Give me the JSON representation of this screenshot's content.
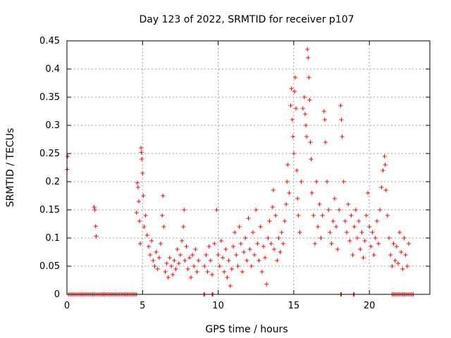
{
  "chart_data": {
    "type": "scatter",
    "title": "Day 123 of 2022, SRMTID for receiver p107",
    "xlabel": "GPS time / hours",
    "ylabel": "SRMTID / TECUs",
    "xlim": [
      0,
      24
    ],
    "ylim": [
      0,
      0.45
    ],
    "x_ticks": [
      0,
      5,
      10,
      15,
      20
    ],
    "x_tick_labels": [
      "0",
      "5",
      "10",
      "15",
      "20"
    ],
    "y_ticks": [
      0,
      0.05,
      0.1,
      0.15,
      0.2,
      0.25,
      0.3,
      0.35,
      0.4,
      0.45
    ],
    "y_tick_labels": [
      "0",
      "0.05",
      "0.1",
      "0.15",
      "0.2",
      "0.25",
      "0.3",
      "0.35",
      "0.4",
      "0.45"
    ],
    "grid": true,
    "marker": "+",
    "color": "#ff0000",
    "series": [
      {
        "name": "p107",
        "points": [
          [
            0.02,
            0.222
          ],
          [
            0.05,
            0.245
          ],
          [
            1.8,
            0.155
          ],
          [
            1.85,
            0.15
          ],
          [
            1.9,
            0.121
          ],
          [
            1.93,
            0.103
          ],
          [
            4.6,
            0.145
          ],
          [
            4.65,
            0.198
          ],
          [
            4.7,
            0.19
          ],
          [
            4.75,
            0.165
          ],
          [
            4.8,
            0.13
          ],
          [
            4.85,
            0.09
          ],
          [
            4.9,
            0.26
          ],
          [
            4.92,
            0.252
          ],
          [
            4.95,
            0.24
          ],
          [
            5.0,
            0.215
          ],
          [
            5.05,
            0.175
          ],
          [
            5.1,
            0.12
          ],
          [
            5.2,
            0.14
          ],
          [
            5.3,
            0.105
          ],
          [
            5.4,
            0.085
          ],
          [
            5.5,
            0.07
          ],
          [
            5.6,
            0.095
          ],
          [
            5.7,
            0.06
          ],
          [
            5.8,
            0.05
          ],
          [
            5.9,
            0.075
          ],
          [
            6.0,
            0.045
          ],
          [
            6.1,
            0.065
          ],
          [
            6.2,
            0.09
          ],
          [
            6.3,
            0.14
          ],
          [
            6.35,
            0.175
          ],
          [
            6.4,
            0.12
          ],
          [
            6.5,
            0.04
          ],
          [
            6.6,
            0.055
          ],
          [
            6.7,
            0.03
          ],
          [
            6.8,
            0.065
          ],
          [
            6.9,
            0.05
          ],
          [
            7.0,
            0.035
          ],
          [
            7.1,
            0.06
          ],
          [
            7.2,
            0.045
          ],
          [
            7.3,
            0.08
          ],
          [
            7.4,
            0.055
          ],
          [
            7.5,
            0.07
          ],
          [
            7.6,
            0.095
          ],
          [
            7.7,
            0.12
          ],
          [
            7.75,
            0.15
          ],
          [
            7.8,
            0.06
          ],
          [
            7.9,
            0.085
          ],
          [
            8.0,
            0.045
          ],
          [
            8.1,
            0.065
          ],
          [
            8.2,
            0.03
          ],
          [
            8.3,
            0.07
          ],
          [
            8.4,
            0.05
          ],
          [
            8.5,
            0.08
          ],
          [
            8.6,
            0.04
          ],
          [
            8.7,
            0.06
          ],
          [
            9.1,
            0.05
          ],
          [
            9.2,
            0.07
          ],
          [
            9.3,
            0.04
          ],
          [
            9.4,
            0.085
          ],
          [
            9.5,
            0.06
          ],
          [
            9.6,
            0.035
          ],
          [
            9.75,
            0.09
          ],
          [
            9.9,
            0.15
          ],
          [
            10.0,
            0.07
          ],
          [
            10.1,
            0.05
          ],
          [
            10.2,
            0.095
          ],
          [
            10.3,
            0.065
          ],
          [
            10.4,
            0.04
          ],
          [
            10.5,
            0.08
          ],
          [
            10.6,
            0.03
          ],
          [
            10.7,
            0.06
          ],
          [
            10.8,
            0.015
          ],
          [
            10.9,
            0.045
          ],
          [
            11.0,
            0.085
          ],
          [
            11.1,
            0.11
          ],
          [
            11.2,
            0.07
          ],
          [
            11.3,
            0.05
          ],
          [
            11.4,
            0.12
          ],
          [
            11.5,
            0.09
          ],
          [
            11.6,
            0.04
          ],
          [
            11.7,
            0.075
          ],
          [
            11.8,
            0.1
          ],
          [
            11.9,
            0.06
          ],
          [
            12.0,
            0.135
          ],
          [
            12.1,
            0.08
          ],
          [
            12.2,
            0.05
          ],
          [
            12.3,
            0.11
          ],
          [
            12.4,
            0.07
          ],
          [
            12.5,
            0.15
          ],
          [
            12.6,
            0.09
          ],
          [
            12.7,
            0.06
          ],
          [
            12.8,
            0.12
          ],
          [
            12.9,
            0.04
          ],
          [
            13.0,
            0.085
          ],
          [
            13.1,
            0.065
          ],
          [
            13.2,
            0.018
          ],
          [
            13.3,
            0.1
          ],
          [
            13.4,
            0.13
          ],
          [
            13.5,
            0.09
          ],
          [
            13.6,
            0.155
          ],
          [
            13.65,
            0.185
          ],
          [
            13.7,
            0.08
          ],
          [
            13.8,
            0.14
          ],
          [
            13.9,
            0.06
          ],
          [
            14.0,
            0.1
          ],
          [
            14.1,
            0.075
          ],
          [
            14.2,
            0.11
          ],
          [
            14.3,
            0.09
          ],
          [
            14.4,
            0.13
          ],
          [
            14.5,
            0.16
          ],
          [
            14.55,
            0.2
          ],
          [
            14.6,
            0.23
          ],
          [
            14.7,
            0.18
          ],
          [
            14.8,
            0.335
          ],
          [
            14.85,
            0.365
          ],
          [
            14.9,
            0.31
          ],
          [
            14.95,
            0.28
          ],
          [
            15.0,
            0.25
          ],
          [
            15.05,
            0.36
          ],
          [
            15.1,
            0.385
          ],
          [
            15.15,
            0.33
          ],
          [
            15.2,
            0.22
          ],
          [
            15.25,
            0.17
          ],
          [
            15.3,
            0.14
          ],
          [
            15.4,
            0.11
          ],
          [
            15.5,
            0.2
          ],
          [
            15.6,
            0.33
          ],
          [
            15.7,
            0.35
          ],
          [
            15.75,
            0.32
          ],
          [
            15.8,
            0.3
          ],
          [
            15.85,
            0.28
          ],
          [
            15.9,
            0.435
          ],
          [
            15.95,
            0.42
          ],
          [
            16.0,
            0.385
          ],
          [
            16.05,
            0.345
          ],
          [
            16.1,
            0.27
          ],
          [
            16.15,
            0.24
          ],
          [
            16.2,
            0.18
          ],
          [
            16.3,
            0.14
          ],
          [
            16.4,
            0.09
          ],
          [
            16.5,
            0.2
          ],
          [
            16.6,
            0.12
          ],
          [
            16.7,
            0.16
          ],
          [
            16.8,
            0.1
          ],
          [
            16.9,
            0.14
          ],
          [
            17.0,
            0.325
          ],
          [
            17.05,
            0.31
          ],
          [
            17.1,
            0.27
          ],
          [
            17.2,
            0.2
          ],
          [
            17.3,
            0.15
          ],
          [
            17.4,
            0.11
          ],
          [
            17.5,
            0.09
          ],
          [
            17.6,
            0.13
          ],
          [
            17.7,
            0.17
          ],
          [
            17.8,
            0.12
          ],
          [
            17.9,
            0.08
          ],
          [
            18.0,
            0.15
          ],
          [
            18.1,
            0.335
          ],
          [
            18.15,
            0.31
          ],
          [
            18.2,
            0.28
          ],
          [
            18.3,
            0.2
          ],
          [
            18.4,
            0.13
          ],
          [
            18.5,
            0.11
          ],
          [
            18.6,
            0.16
          ],
          [
            18.7,
            0.095
          ],
          [
            18.8,
            0.14
          ],
          [
            18.9,
            0.07
          ],
          [
            19.0,
            0.12
          ],
          [
            19.1,
            0.15
          ],
          [
            19.2,
            0.1
          ],
          [
            19.3,
            0.13
          ],
          [
            19.4,
            0.08
          ],
          [
            19.5,
            0.11
          ],
          [
            19.6,
            0.065
          ],
          [
            19.7,
            0.095
          ],
          [
            19.8,
            0.14
          ],
          [
            19.9,
            0.18
          ],
          [
            20.0,
            0.12
          ],
          [
            20.1,
            0.085
          ],
          [
            20.2,
            0.11
          ],
          [
            20.3,
            0.07
          ],
          [
            20.4,
            0.1
          ],
          [
            20.5,
            0.13
          ],
          [
            20.6,
            0.09
          ],
          [
            20.7,
            0.15
          ],
          [
            20.8,
            0.19
          ],
          [
            20.9,
            0.22
          ],
          [
            21.0,
            0.245
          ],
          [
            21.05,
            0.23
          ],
          [
            21.1,
            0.185
          ],
          [
            21.2,
            0.14
          ],
          [
            21.3,
            0.1
          ],
          [
            21.4,
            0.07
          ],
          [
            21.5,
            0.05
          ],
          [
            21.6,
            0.09
          ],
          [
            21.7,
            0.06
          ],
          [
            21.8,
            0.085
          ],
          [
            21.9,
            0.055
          ],
          [
            22.0,
            0.11
          ],
          [
            22.1,
            0.075
          ],
          [
            22.2,
            0.045
          ],
          [
            22.3,
            0.1
          ],
          [
            22.4,
            0.07
          ],
          [
            22.5,
            0.05
          ],
          [
            22.6,
            0.09
          ]
        ],
        "zero_x": [
          0.1,
          0.2,
          0.3,
          0.4,
          0.5,
          0.6,
          0.7,
          0.8,
          0.9,
          1.0,
          1.1,
          1.2,
          1.3,
          1.4,
          1.5,
          1.6,
          1.7,
          1.8,
          1.9,
          2.0,
          2.1,
          2.2,
          2.3,
          2.4,
          2.5,
          2.6,
          2.7,
          2.8,
          2.9,
          3.0,
          3.1,
          3.2,
          3.3,
          3.4,
          3.5,
          3.6,
          3.7,
          3.8,
          3.9,
          4.0,
          4.1,
          4.2,
          4.3,
          4.4,
          4.5,
          4.6,
          9.05,
          9.1,
          9.6,
          9.65,
          18.1,
          18.15,
          18.95,
          19.0,
          21.5,
          21.6,
          21.7,
          21.8,
          21.9,
          22.0,
          22.1,
          22.2,
          22.3,
          22.4,
          22.5,
          22.6,
          22.7,
          22.8,
          22.9
        ]
      }
    ]
  }
}
